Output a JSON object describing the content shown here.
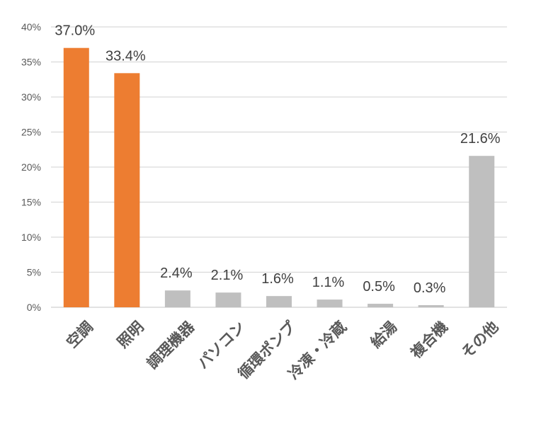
{
  "chart_data": {
    "type": "bar",
    "categories": [
      "空調",
      "照明",
      "調理機器",
      "パソコン",
      "循環ポンプ",
      "冷凍・冷蔵",
      "給湯",
      "複合機",
      "その他"
    ],
    "values": [
      37.0,
      33.4,
      2.4,
      2.1,
      1.6,
      1.1,
      0.5,
      0.3,
      21.6
    ],
    "data_labels": [
      "37.0%",
      "33.4%",
      "2.4%",
      "2.1%",
      "1.6%",
      "1.1%",
      "0.5%",
      "0.3%",
      "21.6%"
    ],
    "bar_colors": [
      "#ED7D31",
      "#ED7D31",
      "#BFBFBF",
      "#BFBFBF",
      "#BFBFBF",
      "#BFBFBF",
      "#BFBFBF",
      "#BFBFBF",
      "#BFBFBF"
    ],
    "y_ticks": [
      "0%",
      "5%",
      "10%",
      "15%",
      "20%",
      "25%",
      "30%",
      "35%",
      "40%"
    ],
    "y_tick_values": [
      0,
      5,
      10,
      15,
      20,
      25,
      30,
      35,
      40
    ],
    "ylim": [
      0,
      40
    ],
    "grid": true,
    "legend": "none",
    "title": "",
    "xlabel": "",
    "ylabel": ""
  },
  "colors": {
    "grid": "#D9D9D9",
    "axis": "#D9D9D9"
  }
}
